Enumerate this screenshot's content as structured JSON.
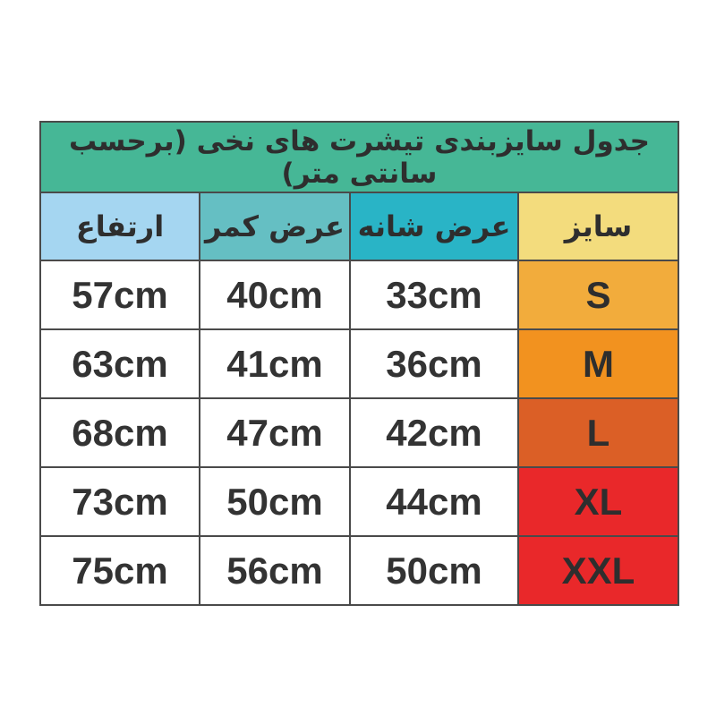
{
  "page": {
    "background_color": "#ffffff"
  },
  "table": {
    "title": "جدول سایزبندی تیشرت های نخی (برحسب سانتی متر)",
    "title_bg": "#46B796",
    "border_color": "#4a4a4a",
    "text_color": "#2e2e2e",
    "columns": [
      {
        "id": "size",
        "label": "سایز",
        "header_bg": "#F3DC7D"
      },
      {
        "id": "shoulder_width",
        "label": "عرض شانه",
        "header_bg": "#29B4C6"
      },
      {
        "id": "waist_width",
        "label": "عرض کمر",
        "header_bg": "#65BFC3"
      },
      {
        "id": "height",
        "label": "ارتفاع",
        "header_bg": "#A5D6F1"
      }
    ],
    "rows": [
      {
        "size": "S",
        "size_bg": "#F2AC3C",
        "shoulder": "33cm",
        "waist": "40cm",
        "height": "57cm"
      },
      {
        "size": "M",
        "size_bg": "#F2921F",
        "shoulder": "36cm",
        "waist": "41cm",
        "height": "63cm"
      },
      {
        "size": "L",
        "size_bg": "#DB5F26",
        "shoulder": "42cm",
        "waist": "47cm",
        "height": "68cm"
      },
      {
        "size": "XL",
        "size_bg": "#E9282A",
        "shoulder": "44cm",
        "waist": "50cm",
        "height": "73cm"
      },
      {
        "size": "XXL",
        "size_bg": "#E9282A",
        "shoulder": "50cm",
        "waist": "56cm",
        "height": "75cm"
      }
    ]
  },
  "chart_data": {
    "type": "table",
    "title": "جدول سایزبندی تیشرت های نخی (برحسب سانتی متر)",
    "title_translation": "Size chart of cotton t-shirts (in centimeters)",
    "columns": [
      "سایز",
      "عرض شانه",
      "عرض کمر",
      "ارتفاع"
    ],
    "columns_translation": [
      "Size",
      "Shoulder width",
      "Waist width",
      "Height"
    ],
    "rows": [
      [
        "S",
        "33cm",
        "40cm",
        "57cm"
      ],
      [
        "M",
        "36cm",
        "41cm",
        "63cm"
      ],
      [
        "L",
        "42cm",
        "47cm",
        "68cm"
      ],
      [
        "XL",
        "44cm",
        "50cm",
        "73cm"
      ],
      [
        "XXL",
        "50cm",
        "56cm",
        "75cm"
      ]
    ],
    "layout": "RTL table; size column rightmost with yellow-to-red gradient fill; title bar teal"
  }
}
